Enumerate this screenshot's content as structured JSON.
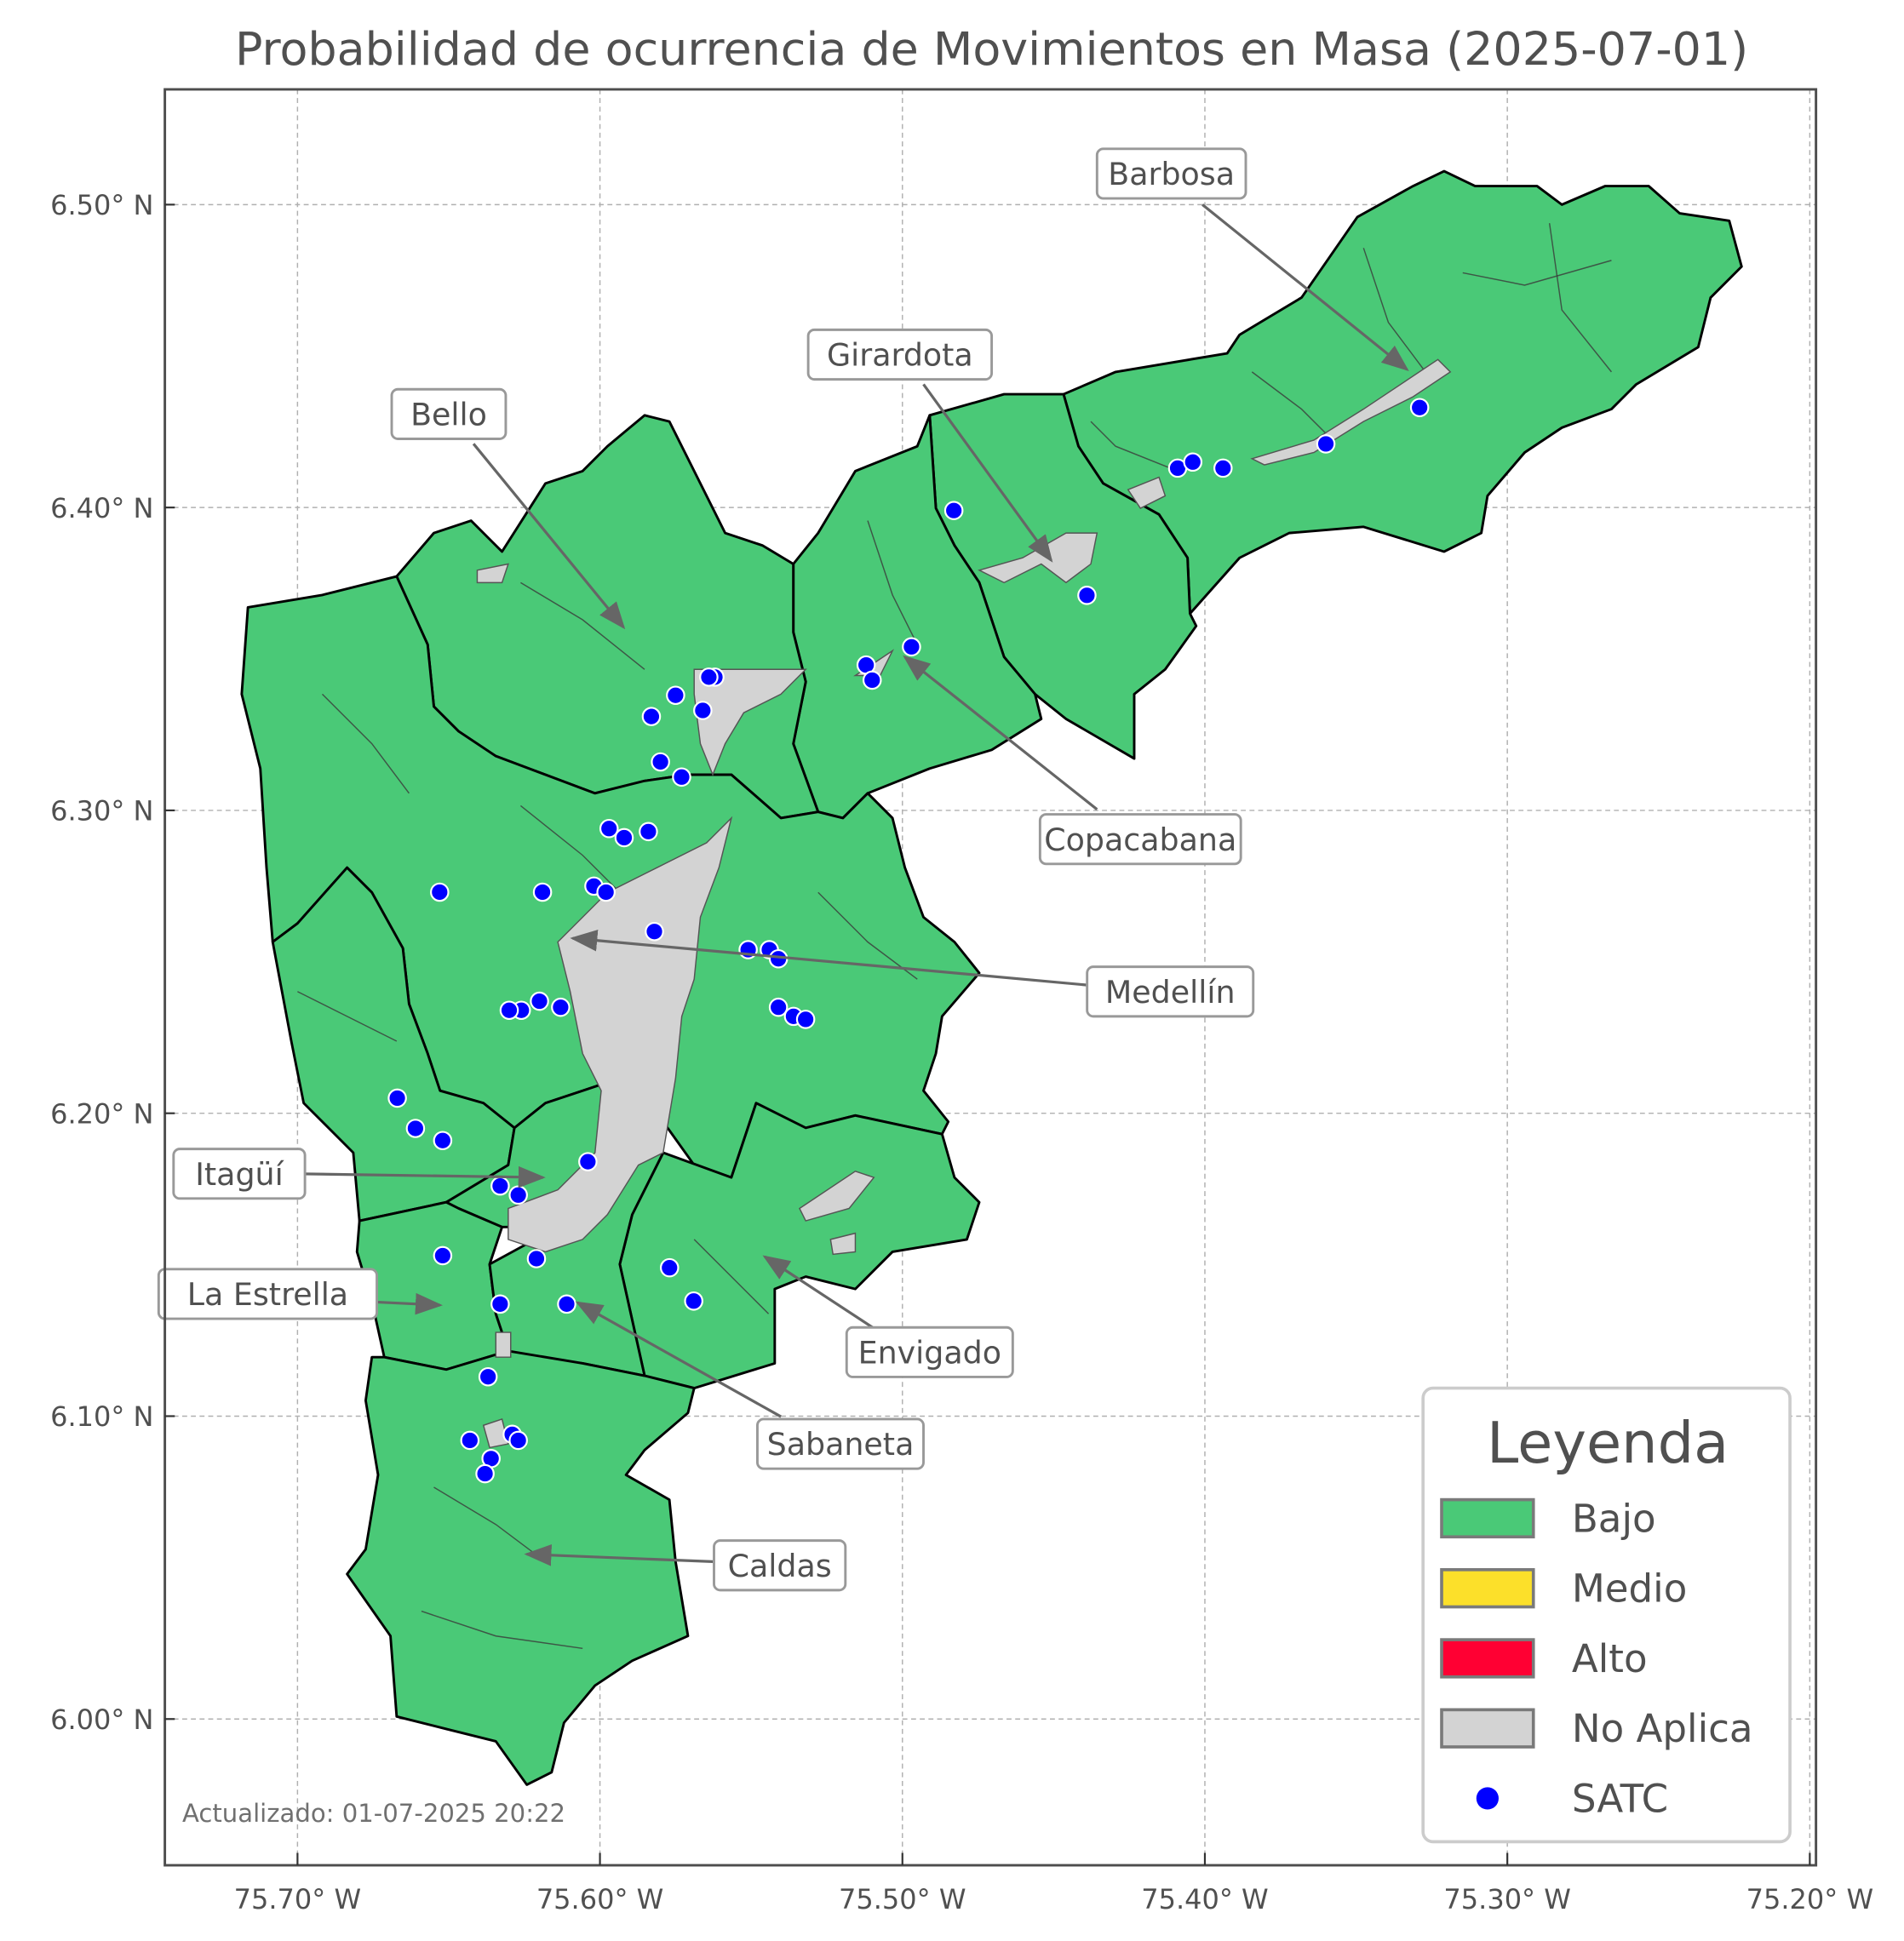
{
  "title": "Probabilidad de ocurrencia de Movimientos en Masa (2025-07-01)",
  "footer": "Actualizado: 01-07-2025 20:22",
  "axes": {
    "x_ticks": [
      "75.70° W",
      "75.60° W",
      "75.50° W",
      "75.40° W",
      "75.30° W",
      "75.20° W"
    ],
    "x_tick_values": [
      -75.7,
      -75.6,
      -75.5,
      -75.4,
      -75.3,
      -75.2
    ],
    "y_ticks": [
      "6.00° N",
      "6.10° N",
      "6.20° N",
      "6.30° N",
      "6.40° N",
      "6.50° N"
    ],
    "y_tick_values": [
      6.0,
      6.1,
      6.2,
      6.3,
      6.4,
      6.5
    ],
    "grid": true
  },
  "colors": {
    "bajo": "#4ac977",
    "medio": "#fce02a",
    "alto": "#ff0033",
    "no_aplica": "#d3d3d3",
    "satc": "#0000ff"
  },
  "legend": {
    "title": "Leyenda",
    "placement": "bottom-right",
    "items": [
      {
        "label": "Bajo",
        "color": "#4ac977",
        "kind": "patch"
      },
      {
        "label": "Medio",
        "color": "#fce02a",
        "kind": "patch"
      },
      {
        "label": "Alto",
        "color": "#ff0033",
        "kind": "patch"
      },
      {
        "label": "No Aplica",
        "color": "#d3d3d3",
        "kind": "patch"
      },
      {
        "label": "SATC",
        "color": "#0000ff",
        "kind": "point"
      }
    ]
  },
  "municipalities": [
    {
      "name": "Barbosa",
      "level": "Bajo"
    },
    {
      "name": "Girardota",
      "level": "Bajo"
    },
    {
      "name": "Copacabana",
      "level": "Bajo"
    },
    {
      "name": "Bello",
      "level": "Bajo"
    },
    {
      "name": "Medellín",
      "level": "Bajo"
    },
    {
      "name": "Envigado",
      "level": "Bajo"
    },
    {
      "name": "Itagüí",
      "level": "Bajo"
    },
    {
      "name": "La Estrella",
      "level": "Bajo"
    },
    {
      "name": "Sabaneta",
      "level": "Bajo"
    },
    {
      "name": "Caldas",
      "level": "Bajo"
    }
  ],
  "satc_stations": [
    [
      -75.483,
      6.399
    ],
    [
      -75.409,
      6.413
    ],
    [
      -75.404,
      6.415
    ],
    [
      -75.394,
      6.413
    ],
    [
      -75.36,
      6.421
    ],
    [
      -75.329,
      6.433
    ],
    [
      -75.439,
      6.371
    ],
    [
      -75.497,
      6.354
    ],
    [
      -75.512,
      6.348
    ],
    [
      -75.51,
      6.343
    ],
    [
      -75.562,
      6.344
    ],
    [
      -75.564,
      6.344
    ],
    [
      -75.575,
      6.338
    ],
    [
      -75.566,
      6.333
    ],
    [
      -75.583,
      6.331
    ],
    [
      -75.58,
      6.316
    ],
    [
      -75.573,
      6.311
    ],
    [
      -75.597,
      6.294
    ],
    [
      -75.584,
      6.293
    ],
    [
      -75.592,
      6.291
    ],
    [
      -75.653,
      6.273
    ],
    [
      -75.619,
      6.273
    ],
    [
      -75.602,
      6.275
    ],
    [
      -75.598,
      6.273
    ],
    [
      -75.582,
      6.26
    ],
    [
      -75.551,
      6.254
    ],
    [
      -75.544,
      6.254
    ],
    [
      -75.541,
      6.251
    ],
    [
      -75.541,
      6.235
    ],
    [
      -75.536,
      6.232
    ],
    [
      -75.532,
      6.231
    ],
    [
      -75.62,
      6.237
    ],
    [
      -75.626,
      6.234
    ],
    [
      -75.63,
      6.234
    ],
    [
      -75.613,
      6.235
    ],
    [
      -75.667,
      6.205
    ],
    [
      -75.661,
      6.195
    ],
    [
      -75.652,
      6.191
    ],
    [
      -75.604,
      6.184
    ],
    [
      -75.633,
      6.176
    ],
    [
      -75.627,
      6.173
    ],
    [
      -75.652,
      6.153
    ],
    [
      -75.621,
      6.152
    ],
    [
      -75.577,
      6.149
    ],
    [
      -75.569,
      6.138
    ],
    [
      -75.633,
      6.137
    ],
    [
      -75.611,
      6.137
    ],
    [
      -75.637,
      6.113
    ],
    [
      -75.643,
      6.092
    ],
    [
      -75.629,
      6.094
    ],
    [
      -75.627,
      6.092
    ],
    [
      -75.636,
      6.086
    ],
    [
      -75.638,
      6.081
    ]
  ]
}
